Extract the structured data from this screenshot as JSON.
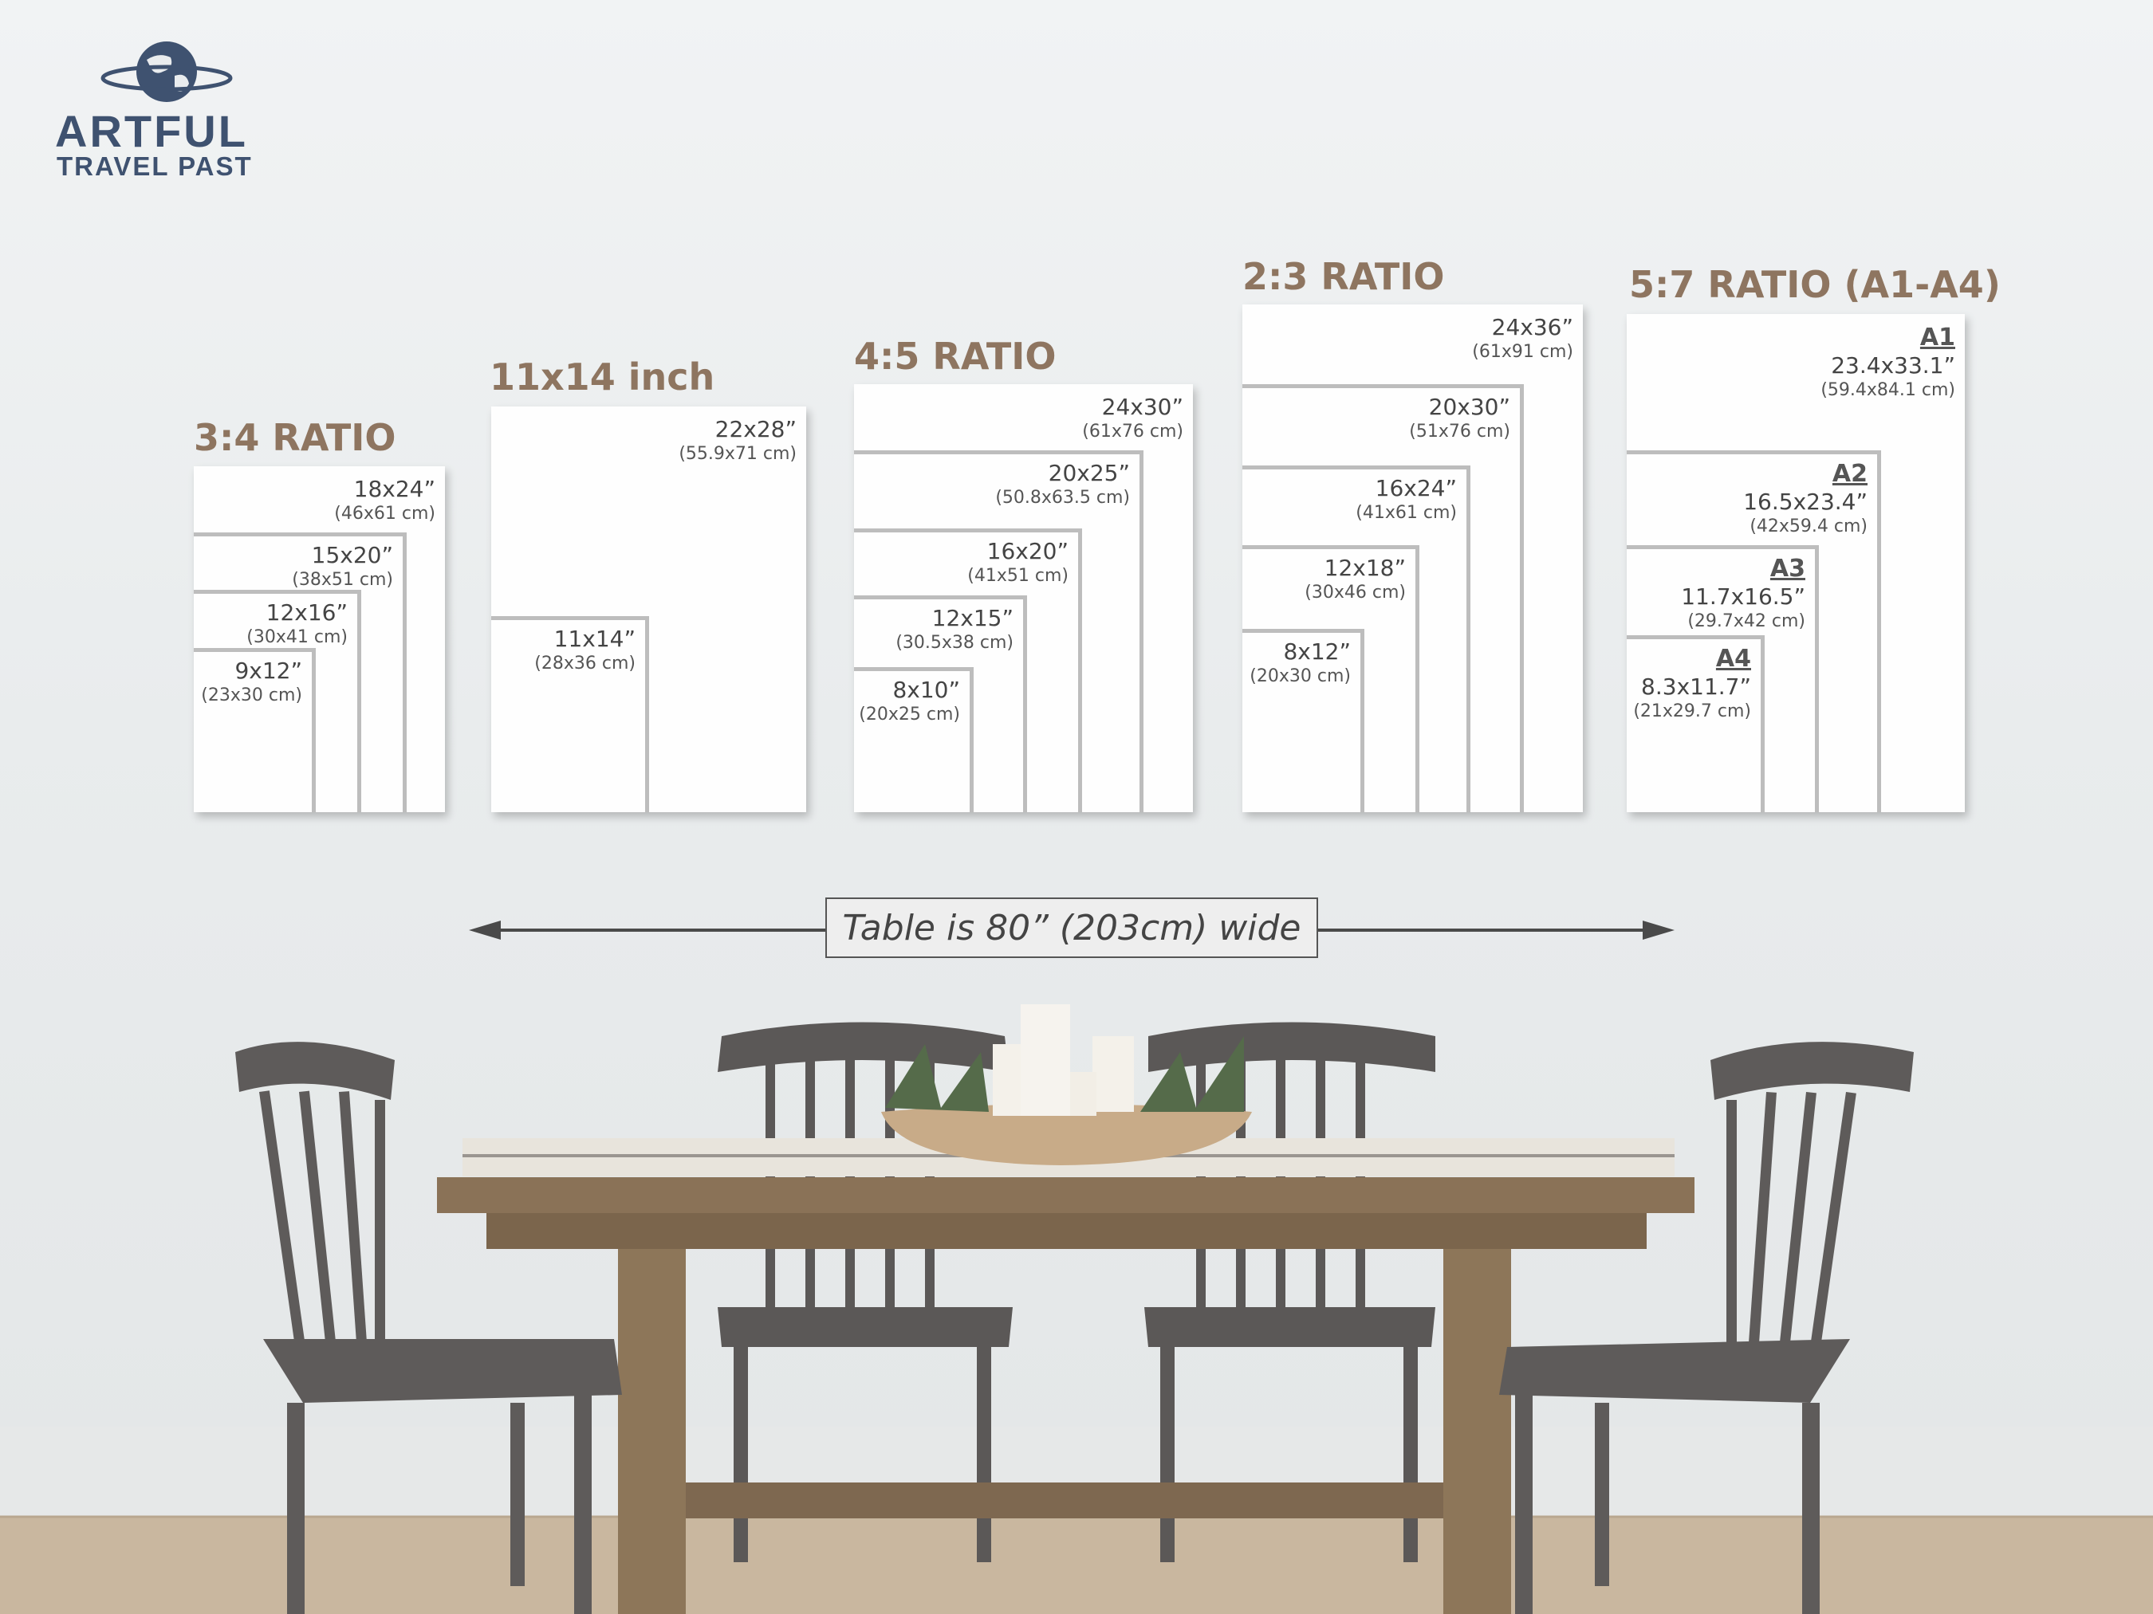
{
  "brand": {
    "name_line1": "ARTFUL",
    "name_line2": "TRAVEL PAST",
    "color": "#3f5270"
  },
  "title_color": "#8e7560",
  "groups": [
    {
      "title": "3:4 RATIO",
      "sizes": [
        {
          "inches": "18x24”",
          "cm": "(46x61 cm)"
        },
        {
          "inches": "15x20”",
          "cm": "(38x51 cm)"
        },
        {
          "inches": "12x16”",
          "cm": "(30x41 cm)"
        },
        {
          "inches": "9x12”",
          "cm": "(23x30 cm)"
        }
      ]
    },
    {
      "title": "11x14 inch",
      "sizes": [
        {
          "inches": "22x28”",
          "cm": "(55.9x71 cm)"
        },
        {
          "inches": "11x14”",
          "cm": "(28x36 cm)"
        }
      ]
    },
    {
      "title": "4:5 RATIO",
      "sizes": [
        {
          "inches": "24x30”",
          "cm": "(61x76 cm)"
        },
        {
          "inches": "20x25”",
          "cm": "(50.8x63.5 cm)"
        },
        {
          "inches": "16x20”",
          "cm": "(41x51 cm)"
        },
        {
          "inches": "12x15”",
          "cm": "(30.5x38 cm)"
        },
        {
          "inches": "8x10”",
          "cm": "(20x25 cm)"
        }
      ]
    },
    {
      "title": "2:3 RATIO",
      "sizes": [
        {
          "inches": "24x36”",
          "cm": "(61x91 cm)"
        },
        {
          "inches": "20x30”",
          "cm": "(51x76 cm)"
        },
        {
          "inches": "16x24”",
          "cm": "(41x61 cm)"
        },
        {
          "inches": "12x18”",
          "cm": "(30x46 cm)"
        },
        {
          "inches": "8x12”",
          "cm": "(20x30 cm)"
        }
      ]
    },
    {
      "title": "5:7 RATIO (A1-A4)",
      "sizes": [
        {
          "name": "A1",
          "inches": "23.4x33.1”",
          "cm": "(59.4x84.1 cm)"
        },
        {
          "name": "A2",
          "inches": "16.5x23.4”",
          "cm": "(42x59.4 cm)"
        },
        {
          "name": "A3",
          "inches": "11.7x16.5”",
          "cm": "(29.7x42 cm)"
        },
        {
          "name": "A4",
          "inches": "8.3x11.7”",
          "cm": "(21x29.7 cm)"
        }
      ]
    }
  ],
  "table_note": "Table is 80” (203cm) wide"
}
